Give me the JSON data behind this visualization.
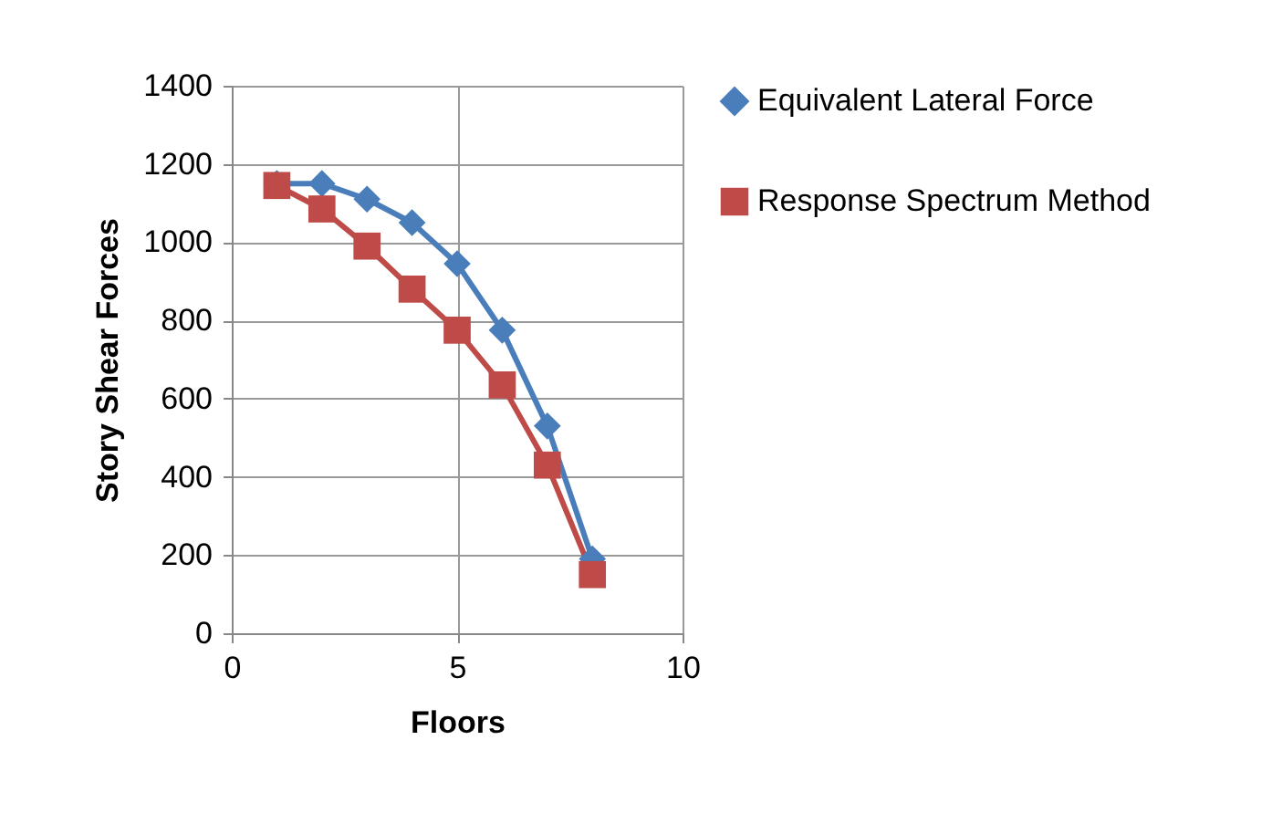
{
  "chart_data": {
    "type": "line",
    "xlabel": "Floors",
    "ylabel": "Story Shear Forces",
    "x": [
      1,
      2,
      3,
      4,
      5,
      6,
      7,
      8
    ],
    "series": [
      {
        "name": "Equivalent Lateral Force",
        "color": "#4a7ebb",
        "marker": "diamond",
        "values": [
          1150,
          1150,
          1110,
          1050,
          945,
          775,
          530,
          190
        ]
      },
      {
        "name": "Response Spectrum Method",
        "color": "#be4b48",
        "marker": "square",
        "values": [
          1145,
          1085,
          990,
          880,
          775,
          635,
          430,
          150
        ]
      }
    ],
    "xlim": [
      0,
      10
    ],
    "xticks": [
      0,
      5,
      10
    ],
    "ylim": [
      0,
      1400
    ],
    "yticks": [
      0,
      200,
      400,
      600,
      800,
      1000,
      1200,
      1400
    ],
    "grid": true,
    "legend": "right",
    "line_style": "solid"
  }
}
